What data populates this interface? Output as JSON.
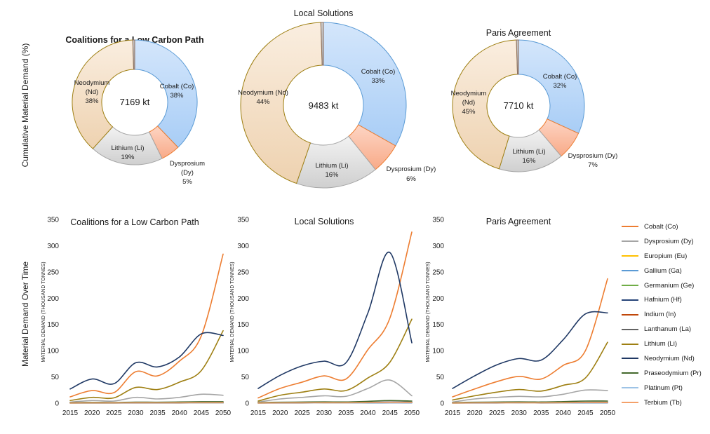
{
  "rows": {
    "top_label": "Cumulative Material Demand (%)",
    "bottom_label": "Material Demand Over Time"
  },
  "colors": {
    "cobalt": "#ed7d31",
    "dysprosium": "#a5a5a5",
    "europium": "#ffc000",
    "gallium": "#5b9bd5",
    "germanium": "#70ad47",
    "hafnium": "#264478",
    "indium": "#c0470a",
    "lanthanum": "#636363",
    "lithium": "#9e7f12",
    "neodymium": "#1f3864",
    "praseodymium": "#43682b",
    "platinum": "#9dc3e6",
    "terbium": "#f4a16a"
  },
  "legend": [
    {
      "label": "Cobalt (Co)",
      "color": "#ed7d31"
    },
    {
      "label": "Dysprosium (Dy)",
      "color": "#a5a5a5"
    },
    {
      "label": "Europium (Eu)",
      "color": "#ffc000"
    },
    {
      "label": "Gallium (Ga)",
      "color": "#5b9bd5"
    },
    {
      "label": "Germanium (Ge)",
      "color": "#70ad47"
    },
    {
      "label": "Hafnium (Hf)",
      "color": "#264478"
    },
    {
      "label": "Indium (In)",
      "color": "#c0470a"
    },
    {
      "label": "Lanthanum (La)",
      "color": "#636363"
    },
    {
      "label": "Lithium (Li)",
      "color": "#9e7f12"
    },
    {
      "label": "Neodymium (Nd)",
      "color": "#1f3864"
    },
    {
      "label": "Praseodymium (Pr)",
      "color": "#43682b"
    },
    {
      "label": "Platinum (Pt)",
      "color": "#9dc3e6"
    },
    {
      "label": "Terbium (Tb)",
      "color": "#f4a16a"
    }
  ],
  "chart_data": [
    {
      "type": "pie",
      "variant": "donut",
      "title": "Coalitions for a Low Carbon Path",
      "center_label": "7169 kt",
      "slices": [
        {
          "label": "Cobalt (Co)",
          "percent_label": "38%",
          "value": 38,
          "fill_top": "#d4e6fb",
          "fill_bottom": "#a8cdf6",
          "stroke": "#5b9bd5"
        },
        {
          "label": "Dysprosium (Dy)",
          "percent_label": "5%",
          "value": 5,
          "fill_top": "#fdd5c4",
          "fill_bottom": "#f8aa88",
          "stroke": "#ed7d31"
        },
        {
          "label": "Lithium (Li)",
          "percent_label": "19%",
          "value": 19,
          "fill_top": "#f2f2f2",
          "fill_bottom": "#cfcfcf",
          "stroke": "#a5a5a5"
        },
        {
          "label": "Neodymium (Nd)",
          "percent_label": "38%",
          "value": 38,
          "fill_top": "#faeee0",
          "fill_bottom": "#eed2b0",
          "stroke": "#9e7f12"
        },
        {
          "label": "",
          "percent_label": "",
          "value": 0.5,
          "fill_top": "#cccccc",
          "fill_bottom": "#aaaaaa",
          "stroke": "#8c6d5c"
        }
      ]
    },
    {
      "type": "pie",
      "variant": "donut",
      "title": "Local Solutions",
      "center_label": "9483 kt",
      "slices": [
        {
          "label": "Cobalt (Co)",
          "percent_label": "33%",
          "value": 33,
          "fill_top": "#d4e6fb",
          "fill_bottom": "#a8cdf6",
          "stroke": "#5b9bd5"
        },
        {
          "label": "Dysprosium (Dy)",
          "percent_label": "6%",
          "value": 6,
          "fill_top": "#fdd5c4",
          "fill_bottom": "#f8aa88",
          "stroke": "#ed7d31"
        },
        {
          "label": "Lithium (Li)",
          "percent_label": "16%",
          "value": 16,
          "fill_top": "#f2f2f2",
          "fill_bottom": "#cfcfcf",
          "stroke": "#a5a5a5"
        },
        {
          "label": "Neodymium (Nd)",
          "percent_label": "44%",
          "value": 44,
          "fill_top": "#faeee0",
          "fill_bottom": "#eed2b0",
          "stroke": "#9e7f12"
        },
        {
          "label": "",
          "percent_label": "",
          "value": 0.5,
          "fill_top": "#cccccc",
          "fill_bottom": "#aaaaaa",
          "stroke": "#8c6d5c"
        }
      ]
    },
    {
      "type": "pie",
      "variant": "donut",
      "title": "Paris Agreement",
      "center_label": "7710 kt",
      "slices": [
        {
          "label": "Cobalt (Co)",
          "percent_label": "32%",
          "value": 32,
          "fill_top": "#d4e6fb",
          "fill_bottom": "#a8cdf6",
          "stroke": "#5b9bd5"
        },
        {
          "label": "Dysprosium (Dy)",
          "percent_label": "7%",
          "value": 7,
          "fill_top": "#fdd5c4",
          "fill_bottom": "#f8aa88",
          "stroke": "#ed7d31"
        },
        {
          "label": "Lithium (Li)",
          "percent_label": "16%",
          "value": 16,
          "fill_top": "#f2f2f2",
          "fill_bottom": "#cfcfcf",
          "stroke": "#a5a5a5"
        },
        {
          "label": "Neodymium (Nd)",
          "percent_label": "45%",
          "value": 45,
          "fill_top": "#faeee0",
          "fill_bottom": "#eed2b0",
          "stroke": "#9e7f12"
        },
        {
          "label": "",
          "percent_label": "",
          "value": 0.5,
          "fill_top": "#cccccc",
          "fill_bottom": "#aaaaaa",
          "stroke": "#8c6d5c"
        }
      ]
    },
    {
      "type": "line",
      "title": "Coalitions for a Low Carbon Path",
      "ylabel": "MATERIAL DEMAND (THOUSAND TONNES)",
      "x": [
        2015,
        2020,
        2025,
        2030,
        2035,
        2040,
        2045,
        2050
      ],
      "ylim": [
        0,
        350
      ],
      "yticks": [
        0,
        50,
        100,
        150,
        200,
        250,
        300,
        350
      ],
      "grid": false,
      "series": [
        {
          "name": "Cobalt (Co)",
          "color": "#ed7d31",
          "values": [
            12,
            24,
            20,
            60,
            52,
            80,
            128,
            284
          ]
        },
        {
          "name": "Dysprosium (Dy)",
          "color": "#a5a5a5",
          "values": [
            2,
            5,
            4,
            11,
            8,
            11,
            17,
            15
          ]
        },
        {
          "name": "Europium (Eu)",
          "color": "#ffc000",
          "values": [
            0.3,
            0.4,
            0.4,
            0.6,
            0.5,
            0.6,
            0.8,
            0.8
          ]
        },
        {
          "name": "Gallium (Ga)",
          "color": "#5b9bd5",
          "values": [
            0.5,
            0.6,
            0.6,
            0.8,
            0.7,
            0.9,
            1,
            1
          ]
        },
        {
          "name": "Germanium (Ge)",
          "color": "#70ad47",
          "values": [
            0.3,
            0.3,
            0.3,
            0.5,
            0.4,
            0.5,
            0.6,
            0.6
          ]
        },
        {
          "name": "Hafnium (Hf)",
          "color": "#264478",
          "values": [
            0.2,
            0.2,
            0.2,
            0.3,
            0.3,
            0.3,
            0.4,
            0.4
          ]
        },
        {
          "name": "Indium (In)",
          "color": "#c0470a",
          "values": [
            0.4,
            0.5,
            0.5,
            0.7,
            0.6,
            0.8,
            1,
            1
          ]
        },
        {
          "name": "Lanthanum (La)",
          "color": "#636363",
          "values": [
            0.6,
            0.7,
            0.7,
            1,
            0.9,
            1.1,
            1.3,
            1.3
          ]
        },
        {
          "name": "Lithium (Li)",
          "color": "#9e7f12",
          "values": [
            5,
            11,
            10,
            30,
            26,
            40,
            62,
            138
          ]
        },
        {
          "name": "Neodymium (Nd)",
          "color": "#1f3864",
          "values": [
            27,
            46,
            37,
            77,
            69,
            88,
            132,
            129
          ]
        },
        {
          "name": "Praseodymium (Pr)",
          "color": "#43682b",
          "values": [
            1,
            1.5,
            1.3,
            2,
            1.8,
            2.2,
            2.8,
            2.8
          ]
        },
        {
          "name": "Platinum (Pt)",
          "color": "#9dc3e6",
          "values": [
            0.2,
            0.3,
            0.3,
            0.4,
            0.4,
            0.5,
            0.6,
            0.6
          ]
        },
        {
          "name": "Terbium (Tb)",
          "color": "#f4a16a",
          "values": [
            0.3,
            0.4,
            0.4,
            0.6,
            0.5,
            0.6,
            0.8,
            0.8
          ]
        }
      ]
    },
    {
      "type": "line",
      "title": "Local Solutions",
      "ylabel": "MATERIAL DEMAND (THOUSAND TONNES)",
      "x": [
        2015,
        2020,
        2025,
        2030,
        2035,
        2040,
        2045,
        2050
      ],
      "ylim": [
        0,
        350
      ],
      "yticks": [
        0,
        50,
        100,
        150,
        200,
        250,
        300,
        350
      ],
      "grid": false,
      "series": [
        {
          "name": "Cobalt (Co)",
          "color": "#ed7d31",
          "values": [
            10,
            28,
            40,
            52,
            46,
            102,
            162,
            326
          ]
        },
        {
          "name": "Dysprosium (Dy)",
          "color": "#a5a5a5",
          "values": [
            2,
            8,
            11,
            14,
            13,
            28,
            44,
            14
          ]
        },
        {
          "name": "Europium (Eu)",
          "color": "#ffc000",
          "values": [
            0.3,
            0.5,
            0.6,
            0.7,
            0.7,
            1,
            1.4,
            1.2
          ]
        },
        {
          "name": "Gallium (Ga)",
          "color": "#5b9bd5",
          "values": [
            0.5,
            0.8,
            0.9,
            1,
            1,
            1.4,
            2,
            1.8
          ]
        },
        {
          "name": "Germanium (Ge)",
          "color": "#70ad47",
          "values": [
            0.3,
            0.4,
            0.5,
            0.6,
            0.6,
            0.8,
            1.1,
            1
          ]
        },
        {
          "name": "Hafnium (Hf)",
          "color": "#264478",
          "values": [
            0.2,
            0.3,
            0.3,
            0.4,
            0.4,
            0.5,
            0.7,
            0.6
          ]
        },
        {
          "name": "Indium (In)",
          "color": "#c0470a",
          "values": [
            0.4,
            0.6,
            0.7,
            0.8,
            0.8,
            1.2,
            1.6,
            1.5
          ]
        },
        {
          "name": "Lanthanum (La)",
          "color": "#636363",
          "values": [
            0.6,
            0.9,
            1,
            1.2,
            1.1,
            1.6,
            2.2,
            2
          ]
        },
        {
          "name": "Lithium (Li)",
          "color": "#9e7f12",
          "values": [
            4,
            15,
            21,
            27,
            24,
            48,
            78,
            160
          ]
        },
        {
          "name": "Neodymium (Nd)",
          "color": "#1f3864",
          "values": [
            28,
            53,
            71,
            80,
            77,
            172,
            287,
            115
          ]
        },
        {
          "name": "Praseodymium (Pr)",
          "color": "#43682b",
          "values": [
            1,
            1.8,
            2.1,
            2.4,
            2.3,
            3.5,
            5,
            4
          ]
        },
        {
          "name": "Platinum (Pt)",
          "color": "#9dc3e6",
          "values": [
            0.2,
            0.4,
            0.4,
            0.5,
            0.5,
            0.7,
            0.9,
            0.8
          ]
        },
        {
          "name": "Terbium (Tb)",
          "color": "#f4a16a",
          "values": [
            0.3,
            0.5,
            0.6,
            0.7,
            0.7,
            1,
            1.4,
            1.2
          ]
        }
      ]
    },
    {
      "type": "line",
      "title": "Paris Agreement",
      "ylabel": "MATERIAL DEMAND (THOUSAND TONNES)",
      "x": [
        2015,
        2020,
        2025,
        2030,
        2035,
        2040,
        2045,
        2050
      ],
      "ylim": [
        0,
        350
      ],
      "yticks": [
        0,
        50,
        100,
        150,
        200,
        250,
        300,
        350
      ],
      "grid": false,
      "series": [
        {
          "name": "Cobalt (Co)",
          "color": "#ed7d31",
          "values": [
            12,
            27,
            41,
            51,
            46,
            72,
            100,
            237
          ]
        },
        {
          "name": "Dysprosium (Dy)",
          "color": "#a5a5a5",
          "values": [
            2,
            8,
            11,
            13,
            12,
            17,
            25,
            24
          ]
        },
        {
          "name": "Europium (Eu)",
          "color": "#ffc000",
          "values": [
            0.3,
            0.5,
            0.6,
            0.7,
            0.6,
            0.8,
            1.1,
            1.1
          ]
        },
        {
          "name": "Gallium (Ga)",
          "color": "#5b9bd5",
          "values": [
            0.5,
            0.8,
            0.9,
            1,
            1,
            1.2,
            1.6,
            1.6
          ]
        },
        {
          "name": "Germanium (Ge)",
          "color": "#70ad47",
          "values": [
            0.3,
            0.4,
            0.5,
            0.6,
            0.5,
            0.7,
            0.9,
            0.9
          ]
        },
        {
          "name": "Hafnium (Hf)",
          "color": "#264478",
          "values": [
            0.2,
            0.3,
            0.3,
            0.4,
            0.3,
            0.4,
            0.6,
            0.6
          ]
        },
        {
          "name": "Indium (In)",
          "color": "#c0470a",
          "values": [
            0.4,
            0.6,
            0.7,
            0.8,
            0.7,
            1,
            1.3,
            1.3
          ]
        },
        {
          "name": "Lanthanum (La)",
          "color": "#636363",
          "values": [
            0.6,
            0.9,
            1,
            1.2,
            1.1,
            1.4,
            1.8,
            1.8
          ]
        },
        {
          "name": "Lithium (Li)",
          "color": "#9e7f12",
          "values": [
            6,
            14,
            21,
            26,
            23,
            34,
            48,
            116
          ]
        },
        {
          "name": "Neodymium (Nd)",
          "color": "#1f3864",
          "values": [
            28,
            52,
            73,
            85,
            82,
            121,
            170,
            172
          ]
        },
        {
          "name": "Praseodymium (Pr)",
          "color": "#43682b",
          "values": [
            1,
            1.8,
            2.1,
            2.4,
            2.2,
            3,
            4,
            4
          ]
        },
        {
          "name": "Platinum (Pt)",
          "color": "#9dc3e6",
          "values": [
            0.2,
            0.4,
            0.4,
            0.5,
            0.4,
            0.6,
            0.8,
            0.8
          ]
        },
        {
          "name": "Terbium (Tb)",
          "color": "#f4a16a",
          "values": [
            0.3,
            0.5,
            0.6,
            0.7,
            0.6,
            0.8,
            1.1,
            1.1
          ]
        }
      ]
    }
  ]
}
